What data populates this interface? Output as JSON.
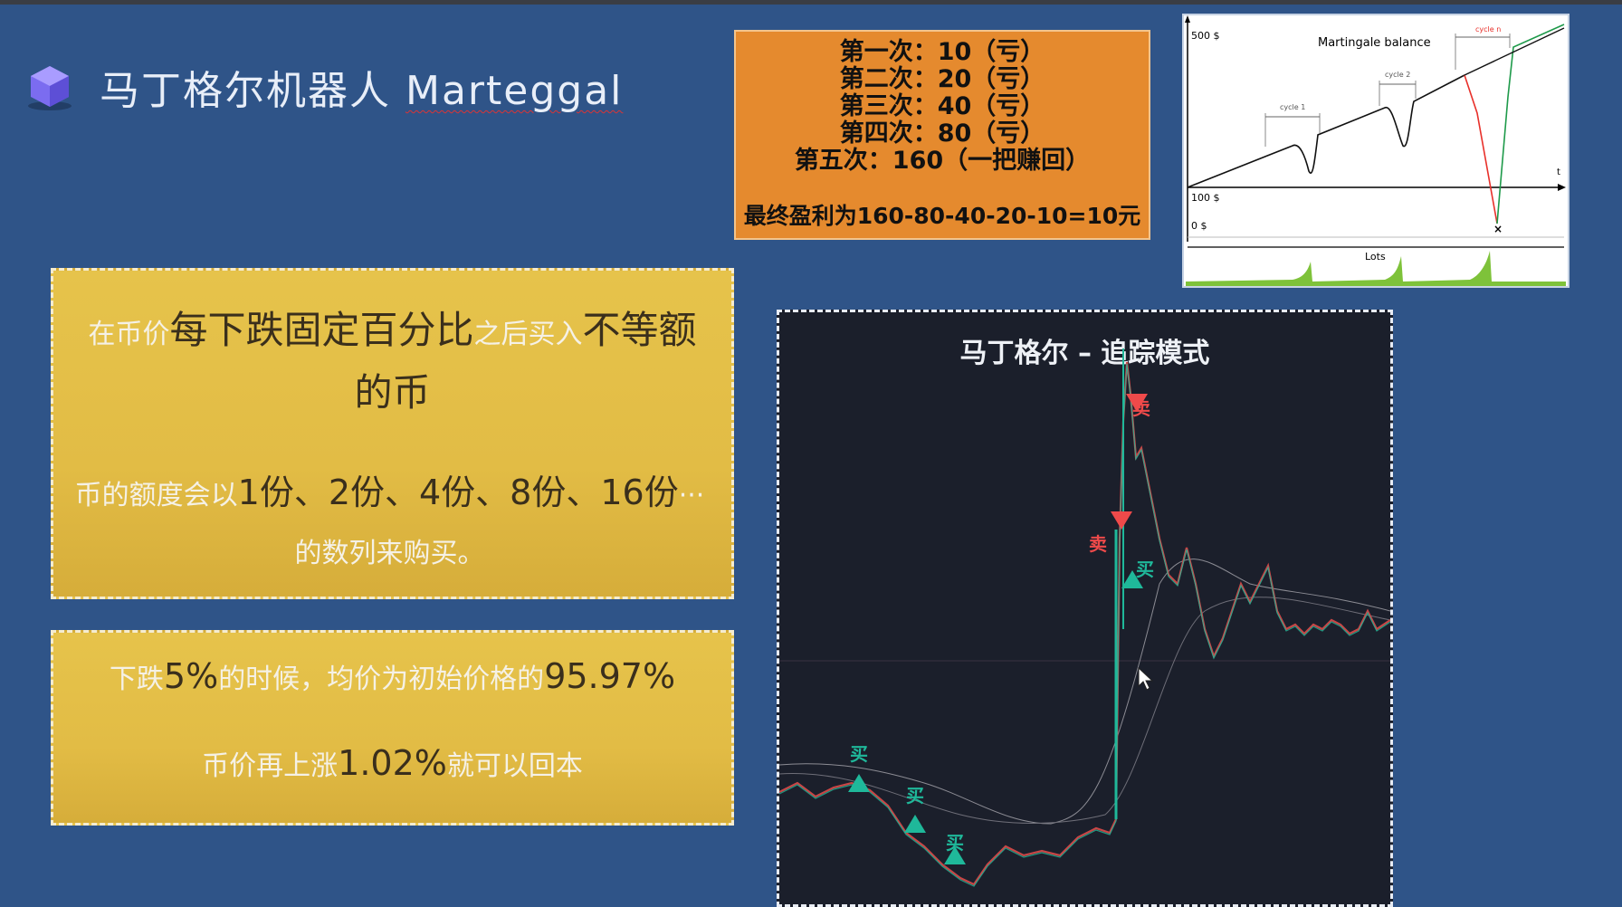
{
  "header": {
    "title_cn": "马丁格尔机器人",
    "title_en": "Marteggal",
    "logo_icon": "cube-icon"
  },
  "orange_box": {
    "lines": [
      "第一次：10（亏）",
      "第二次：20（亏）",
      "第三次：40（亏）",
      "第四次：80（亏）",
      "第五次：160（一把赚回）"
    ],
    "final": "最终盈利为160-80-40-20-10=10元",
    "bg_color": "#e58a2e"
  },
  "martingale_chart": {
    "title": "Martingale balance",
    "y_labels": [
      "500 $",
      "100 $",
      "0 $"
    ],
    "x_axis_label": "t",
    "cycles": [
      "cycle 1",
      "cycle 2",
      "cycle n"
    ],
    "lots_label": "Lots"
  },
  "card1": {
    "p1_a": "在币价",
    "p1_b": "每下跌固定百分比",
    "p1_c": "之后买入",
    "p1_d": "不等额的币",
    "p2_a": "币的额度会以",
    "p2_b": "1份、2份、4份、8份、16份",
    "p2_c": "···的数列来购买。"
  },
  "card2": {
    "p1_a": "下跌",
    "p1_b": "5%",
    "p1_c": "的时候，均价为初始价格的",
    "p1_d": "95.97%",
    "p2_a": "币价再上涨",
    "p2_b": "1.02%",
    "p2_c": "就可以回本"
  },
  "trading_chart": {
    "title": "马丁格尔 – 追踪模式",
    "buy_label": "买",
    "sell_label": "卖",
    "buy_color": "#1fb89a",
    "sell_color": "#ef4a4a"
  }
}
